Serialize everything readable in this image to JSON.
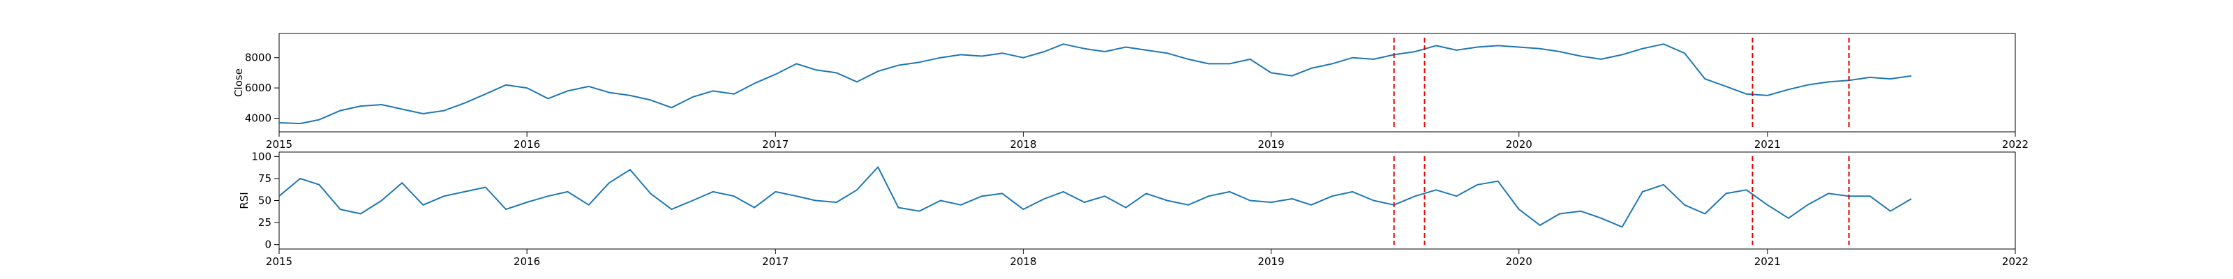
{
  "chart_data": [
    {
      "type": "line",
      "ylabel": "Close",
      "xlim": [
        "2015-01-01",
        "2022-01-01"
      ],
      "ylim": [
        3100,
        9600
      ],
      "xticks": [
        "2015",
        "2016",
        "2017",
        "2018",
        "2019",
        "2020",
        "2021",
        "2022"
      ],
      "yticks": [
        4000,
        6000,
        8000
      ],
      "line_color": "#1f77b4",
      "series": [
        {
          "x": [
            "2015-01-01",
            "2015-02-01",
            "2015-03-01",
            "2015-04-01",
            "2015-05-01",
            "2015-06-01",
            "2015-07-01",
            "2015-08-01",
            "2015-09-01",
            "2015-10-01",
            "2015-11-01",
            "2015-12-01",
            "2016-01-01",
            "2016-02-01",
            "2016-03-01",
            "2016-04-01",
            "2016-05-01",
            "2016-06-01",
            "2016-07-01",
            "2016-08-01",
            "2016-09-01",
            "2016-10-01",
            "2016-11-01",
            "2016-12-01",
            "2017-01-01",
            "2017-02-01",
            "2017-03-01",
            "2017-04-01",
            "2017-05-01",
            "2017-06-01",
            "2017-07-01",
            "2017-08-01",
            "2017-09-01",
            "2017-10-01",
            "2017-11-01",
            "2017-12-01",
            "2018-01-01",
            "2018-02-01",
            "2018-03-01",
            "2018-04-01",
            "2018-05-01",
            "2018-06-01",
            "2018-07-01",
            "2018-08-01",
            "2018-09-01",
            "2018-10-01",
            "2018-11-01",
            "2018-12-01",
            "2019-01-01",
            "2019-02-01",
            "2019-03-01",
            "2019-04-01",
            "2019-05-01",
            "2019-06-01",
            "2019-07-01",
            "2019-08-01",
            "2019-09-01",
            "2019-10-01",
            "2019-11-01",
            "2019-12-01",
            "2020-01-01",
            "2020-02-01",
            "2020-03-01",
            "2020-04-01",
            "2020-05-01",
            "2020-06-01",
            "2020-07-01",
            "2020-08-01",
            "2020-09-01",
            "2020-10-01",
            "2020-11-01",
            "2020-12-01",
            "2021-01-01",
            "2021-02-01",
            "2021-03-01",
            "2021-04-01",
            "2021-05-01",
            "2021-06-01",
            "2021-07-01",
            "2021-08-01"
          ],
          "values": [
            3700,
            3650,
            3900,
            4500,
            4800,
            4900,
            4600,
            4300,
            4500,
            5000,
            5600,
            6200,
            6000,
            5300,
            5800,
            6100,
            5700,
            5500,
            5200,
            4700,
            5400,
            5800,
            5600,
            6300,
            6900,
            7600,
            7200,
            7000,
            6400,
            7100,
            7500,
            7700,
            8000,
            8200,
            8100,
            8300,
            8000,
            8400,
            8900,
            8600,
            8400,
            8700,
            8500,
            8300,
            7900,
            7600,
            7600,
            7900,
            7000,
            6800,
            7300,
            7600,
            8000,
            7900,
            8200,
            8400,
            8800,
            8500,
            8700,
            8800,
            8700,
            8600,
            8400,
            8100,
            7900,
            8200,
            8600,
            8900,
            8300,
            6600,
            6100,
            5600,
            5500,
            5900,
            6200,
            6400,
            6500,
            6700,
            6600,
            6800
          ]
        }
      ]
    },
    {
      "type": "line",
      "ylabel": "RSI",
      "xlim": [
        "2015-01-01",
        "2022-01-01"
      ],
      "ylim": [
        -5,
        105
      ],
      "xticks": [
        "2015",
        "2016",
        "2017",
        "2018",
        "2019",
        "2020",
        "2021",
        "2022"
      ],
      "yticks": [
        0,
        25,
        50,
        75,
        100
      ],
      "line_color": "#1f77b4",
      "series": [
        {
          "x": [
            "2015-01-01",
            "2015-02-01",
            "2015-03-01",
            "2015-04-01",
            "2015-05-01",
            "2015-06-01",
            "2015-07-01",
            "2015-08-01",
            "2015-09-01",
            "2015-10-01",
            "2015-11-01",
            "2015-12-01",
            "2016-01-01",
            "2016-02-01",
            "2016-03-01",
            "2016-04-01",
            "2016-05-01",
            "2016-06-01",
            "2016-07-01",
            "2016-08-01",
            "2016-09-01",
            "2016-10-01",
            "2016-11-01",
            "2016-12-01",
            "2017-01-01",
            "2017-02-01",
            "2017-03-01",
            "2017-04-01",
            "2017-05-01",
            "2017-06-01",
            "2017-07-01",
            "2017-08-01",
            "2017-09-01",
            "2017-10-01",
            "2017-11-01",
            "2017-12-01",
            "2018-01-01",
            "2018-02-01",
            "2018-03-01",
            "2018-04-01",
            "2018-05-01",
            "2018-06-01",
            "2018-07-01",
            "2018-08-01",
            "2018-09-01",
            "2018-10-01",
            "2018-11-01",
            "2018-12-01",
            "2019-01-01",
            "2019-02-01",
            "2019-03-01",
            "2019-04-01",
            "2019-05-01",
            "2019-06-01",
            "2019-07-01",
            "2019-08-01",
            "2019-09-01",
            "2019-10-01",
            "2019-11-01",
            "2019-12-01",
            "2020-01-01",
            "2020-02-01",
            "2020-03-01",
            "2020-04-01",
            "2020-05-01",
            "2020-06-01",
            "2020-07-01",
            "2020-08-01",
            "2020-09-01",
            "2020-10-01",
            "2020-11-01",
            "2020-12-01",
            "2021-01-01",
            "2021-02-01",
            "2021-03-01",
            "2021-04-01",
            "2021-05-01",
            "2021-06-01",
            "2021-07-01",
            "2021-08-01"
          ],
          "values": [
            55,
            75,
            68,
            40,
            35,
            50,
            70,
            45,
            55,
            60,
            65,
            40,
            48,
            55,
            60,
            45,
            70,
            85,
            58,
            40,
            50,
            60,
            55,
            42,
            60,
            55,
            50,
            48,
            62,
            88,
            42,
            38,
            50,
            45,
            55,
            58,
            40,
            52,
            60,
            48,
            55,
            42,
            58,
            50,
            45,
            55,
            60,
            50,
            48,
            52,
            45,
            55,
            60,
            50,
            45,
            55,
            62,
            55,
            68,
            72,
            40,
            22,
            35,
            38,
            30,
            20,
            60,
            68,
            45,
            35,
            58,
            62,
            45,
            30,
            45,
            58,
            55,
            55,
            38,
            52
          ]
        }
      ]
    }
  ],
  "event_lines": {
    "color": "#e00000",
    "dates": [
      "2019-07-01",
      "2019-08-15",
      "2020-12-10",
      "2021-05-01"
    ]
  }
}
